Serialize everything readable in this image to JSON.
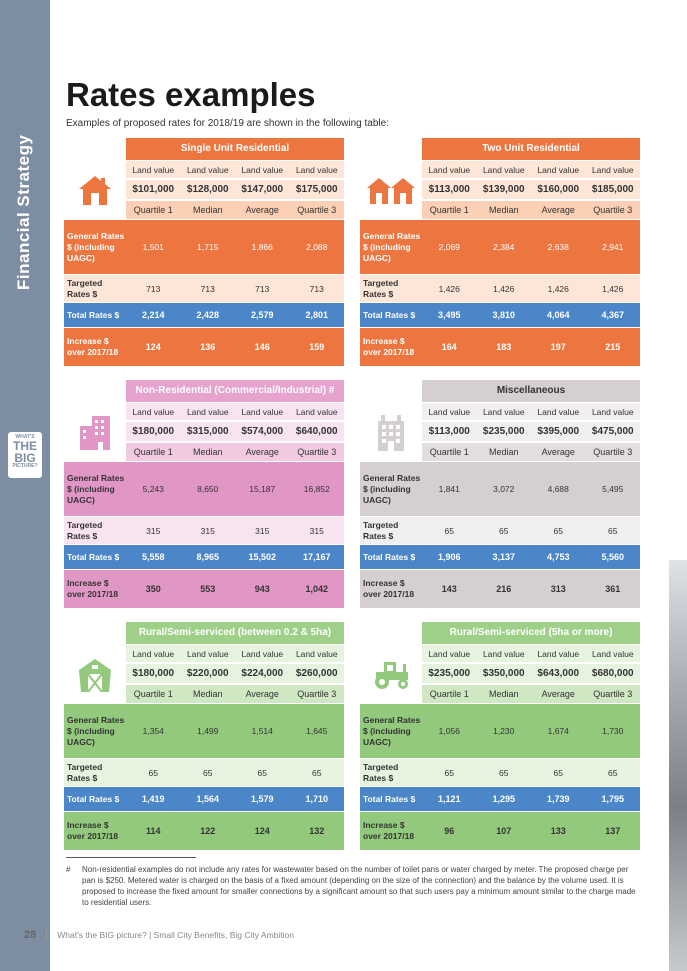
{
  "sidebar": {
    "section_title": "Financial Strategy",
    "badge": {
      "line1": "WHAT'S",
      "line2": "THE",
      "line3": "BIG",
      "line4": "PICTURE?"
    }
  },
  "page": {
    "title": "Rates examples",
    "subtitle": "Examples of proposed rates for 2018/19 are shown in the following table:"
  },
  "row_labels": {
    "land_value": "Land value",
    "general": "General Rates $ (including UAGC)",
    "targeted": "Targeted Rates $",
    "total": "Total Rates $",
    "increase": "Increase $ over 2017/18"
  },
  "quartile_labels": [
    "Quartile 1",
    "Median",
    "Average",
    "Quartile 3"
  ],
  "tables": [
    {
      "title": "Single Unit Residential",
      "icon": "house-icon",
      "land_values": [
        "$101,000",
        "$128,000",
        "$147,000",
        "$175,000"
      ],
      "general": [
        "1,501",
        "1,715",
        "1,866",
        "2,088"
      ],
      "targeted": [
        "713",
        "713",
        "713",
        "713"
      ],
      "total": [
        "2,214",
        "2,428",
        "2,579",
        "2,801"
      ],
      "increase": [
        "124",
        "136",
        "146",
        "159"
      ],
      "colors": {
        "header": "#ed7640",
        "light": "#fde6d8",
        "mid": "#fbd0b5",
        "strong": "#ed7640"
      }
    },
    {
      "title": "Two Unit Residential",
      "icon": "two-houses-icon",
      "land_values": [
        "$113,000",
        "$139,000",
        "$160,000",
        "$185,000"
      ],
      "general": [
        "2,069",
        "2,384",
        "2,638",
        "2,941"
      ],
      "targeted": [
        "1,426",
        "1,426",
        "1,426",
        "1,426"
      ],
      "total": [
        "3,495",
        "3,810",
        "4,064",
        "4,367"
      ],
      "increase": [
        "164",
        "183",
        "197",
        "215"
      ],
      "colors": {
        "header": "#ed7640",
        "light": "#fde6d8",
        "mid": "#fbd0b5",
        "strong": "#ed7640"
      }
    },
    {
      "title": "Non-Residential (Commercial/Industrial) #",
      "icon": "office-building-icon",
      "land_values": [
        "$180,000",
        "$315,000",
        "$574,000",
        "$640,000"
      ],
      "general": [
        "5,243",
        "8,650",
        "15,187",
        "16,852"
      ],
      "targeted": [
        "315",
        "315",
        "315",
        "315"
      ],
      "total": [
        "5,558",
        "8,965",
        "15,502",
        "17,167"
      ],
      "increase": [
        "350",
        "553",
        "943",
        "1,042"
      ],
      "colors": {
        "header": "#e6a3cd",
        "light": "#f8e4f0",
        "mid": "#f1cae2",
        "strong": "#e197c5"
      }
    },
    {
      "title": "Miscellaneous",
      "icon": "apartment-building-icon",
      "land_values": [
        "$113,000",
        "$235,000",
        "$395,000",
        "$475,000"
      ],
      "general": [
        "1,841",
        "3,072",
        "4,688",
        "5,495"
      ],
      "targeted": [
        "65",
        "65",
        "65",
        "65"
      ],
      "total": [
        "1,906",
        "3,137",
        "4,753",
        "5,560"
      ],
      "increase": [
        "143",
        "216",
        "313",
        "361"
      ],
      "colors": {
        "header": "#d6cfcf",
        "light": "#f1eeee",
        "mid": "#e3dede",
        "strong": "#d6cfcf"
      }
    },
    {
      "title": "Rural/Semi-serviced (between 0.2 & 5ha)",
      "icon": "barn-icon",
      "land_values": [
        "$180,000",
        "$220,000",
        "$224,000",
        "$260,000"
      ],
      "general": [
        "1,354",
        "1,499",
        "1,514",
        "1,645"
      ],
      "targeted": [
        "65",
        "65",
        "65",
        "65"
      ],
      "total": [
        "1,419",
        "1,564",
        "1,579",
        "1,710"
      ],
      "increase": [
        "114",
        "122",
        "124",
        "132"
      ],
      "colors": {
        "header": "#9fd08a",
        "light": "#e6f3df",
        "mid": "#cfe8c3",
        "strong": "#93c97c"
      }
    },
    {
      "title": "Rural/Semi-serviced (5ha or more)",
      "icon": "tractor-icon",
      "land_values": [
        "$235,000",
        "$350,000",
        "$643,000",
        "$680,000"
      ],
      "general": [
        "1,056",
        "1,230",
        "1,674",
        "1,730"
      ],
      "targeted": [
        "65",
        "65",
        "65",
        "65"
      ],
      "total": [
        "1,121",
        "1,295",
        "1,739",
        "1,795"
      ],
      "increase": [
        "96",
        "107",
        "133",
        "137"
      ],
      "colors": {
        "header": "#9fd08a",
        "light": "#e6f3df",
        "mid": "#cfe8c3",
        "strong": "#93c97c"
      }
    }
  ],
  "total_row_color": "#4a86c8",
  "footnote": {
    "mark": "#",
    "text": "Non-residential examples do not include any rates for wastewater based on the number of toilet pans or water charged by meter. The proposed charge per pan is $250. Metered water is charged on the basis of a fixed amount (depending on the size of the connection) and the balance by the volume used. It is proposed to increase the fixed amount for smaller connections by a significant amount so that such users pay a minimum amount similar to the charge made to residential users."
  },
  "footer": {
    "page_number": "28",
    "tagline": "What's the BIG picture?  |  Small City Benefits, Big City Ambition"
  }
}
